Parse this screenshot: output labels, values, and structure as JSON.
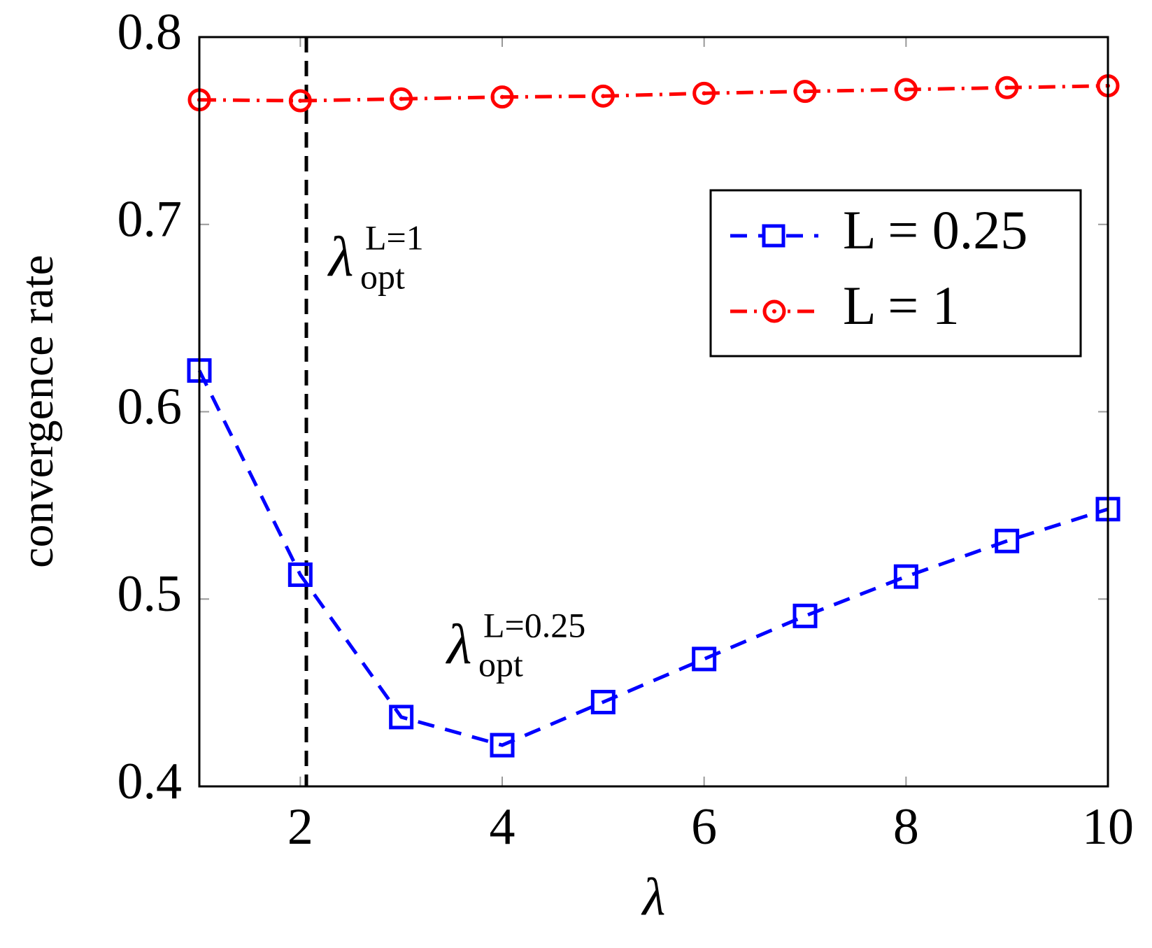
{
  "chart_data": {
    "type": "line",
    "xlabel": "λ",
    "ylabel": "convergence rate",
    "x": [
      1,
      2,
      3,
      4,
      5,
      6,
      7,
      8,
      9,
      10
    ],
    "series": [
      {
        "name": "L = 0.25",
        "color": "#0000ff",
        "marker": "square",
        "linestyle": "dashed",
        "values": [
          0.622,
          0.513,
          0.437,
          0.422,
          0.445,
          0.468,
          0.491,
          0.512,
          0.531,
          0.548
        ]
      },
      {
        "name": "L = 1",
        "color": "#ff0000",
        "marker": "circle",
        "linestyle": "dashdot",
        "values": [
          0.7665,
          0.766,
          0.767,
          0.768,
          0.7685,
          0.77,
          0.771,
          0.772,
          0.773,
          0.774
        ]
      }
    ],
    "vline": 2.06,
    "annotations": [
      {
        "text": "λ",
        "superscript": "L=1",
        "subscript": "opt"
      },
      {
        "text": "λ",
        "superscript": "L=0.25",
        "subscript": "opt"
      }
    ],
    "xlim": [
      1,
      10
    ],
    "ylim": [
      0.4,
      0.8
    ],
    "xticks": [
      2,
      4,
      6,
      8,
      10
    ],
    "yticks": [
      0.4,
      0.5,
      0.6,
      0.7,
      0.8
    ],
    "legend": "upper right"
  }
}
